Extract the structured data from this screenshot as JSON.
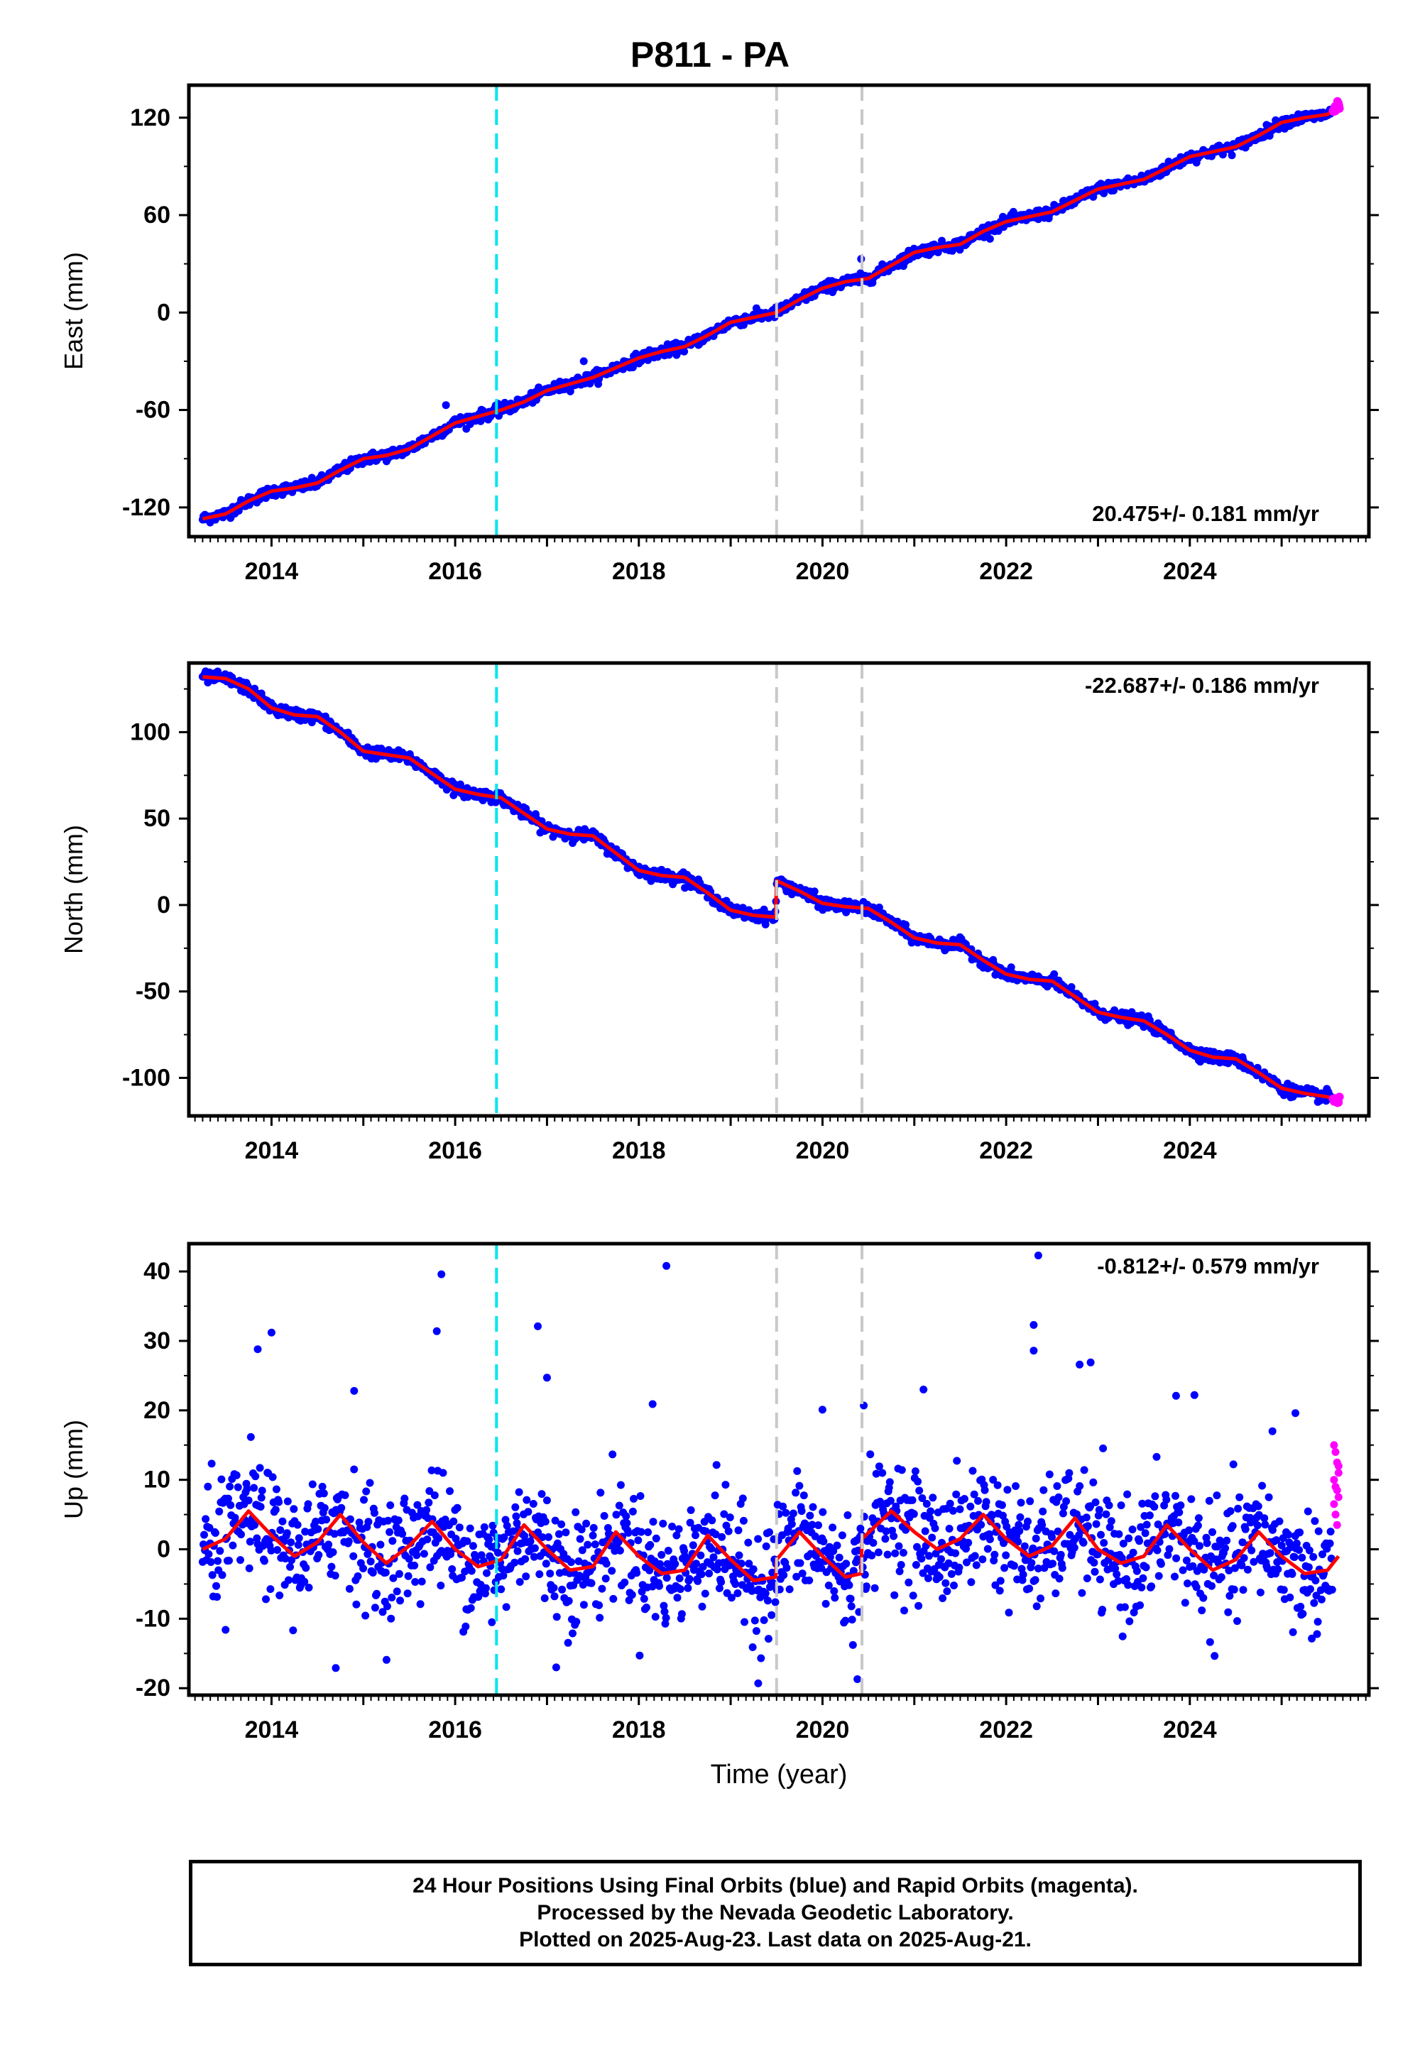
{
  "title": "P811 - PA",
  "footer": {
    "line1": "24 Hour Positions Using Final Orbits (blue) and Rapid Orbits (magenta).",
    "line2": "Processed by the Nevada Geodetic Laboratory.",
    "line3": "Plotted on 2025-Aug-23. Last data on 2025-Aug-21."
  },
  "colors": {
    "final_orbits": "#0000ff",
    "rapid_orbits": "#ff00ff",
    "model_fit": "#ff0000",
    "antenna_change_line": "#00e5ee",
    "equipment_change_line": "#c8c8c8"
  },
  "chart_data": [
    {
      "type": "scatter",
      "ylabel": "East (mm)",
      "xlabel": "",
      "xlim": [
        2013.1,
        2025.95
      ],
      "ylim": [
        -138,
        140
      ],
      "yticks": [
        -120,
        -60,
        0,
        60,
        120
      ],
      "xticks": [
        2014,
        2016,
        2018,
        2020,
        2022,
        2024
      ],
      "rate_label": "20.475+/- 0.181 mm/yr",
      "rate_position": "bottom-right",
      "vlines": [
        {
          "x": 2016.45,
          "color": "cyan"
        },
        {
          "x": 2019.5,
          "color": "gray"
        },
        {
          "x": 2020.43,
          "color": "gray"
        }
      ],
      "series": [
        {
          "role": "final",
          "x_range": [
            2013.25,
            2025.55
          ],
          "noise": 1.6,
          "outliers": [
            {
              "x": 2020.42,
              "y": 33
            },
            {
              "x": 2017.4,
              "y": -30
            },
            {
              "x": 2015.9,
              "y": -57
            }
          ]
        },
        {
          "role": "rapid",
          "x_range": [
            2025.56,
            2025.63
          ],
          "noise": 1.5
        },
        {
          "role": "model",
          "x": [
            2013.25,
            2013.5,
            2013.75,
            2014.0,
            2014.25,
            2014.5,
            2014.75,
            2015.0,
            2015.25,
            2015.5,
            2015.75,
            2016.0,
            2016.25,
            2016.5,
            2016.75,
            2017.0,
            2017.25,
            2017.5,
            2017.75,
            2018.0,
            2018.25,
            2018.5,
            2018.75,
            2019.0,
            2019.25,
            2019.5,
            2019.75,
            2020.0,
            2020.25,
            2020.5,
            2020.75,
            2021.0,
            2021.25,
            2021.5,
            2021.75,
            2022.0,
            2022.25,
            2022.5,
            2022.75,
            2023.0,
            2023.25,
            2023.5,
            2023.75,
            2024.0,
            2024.25,
            2024.5,
            2024.75,
            2025.0,
            2025.25,
            2025.5,
            2025.62
          ],
          "y": [
            -127,
            -124,
            -116,
            -110,
            -108,
            -105,
            -97,
            -90,
            -88,
            -84,
            -76,
            -68,
            -64,
            -60,
            -55,
            -48,
            -44,
            -40,
            -34,
            -28,
            -24,
            -21,
            -14,
            -6,
            -3,
            0,
            8,
            15,
            19,
            21,
            29,
            37,
            40,
            42,
            50,
            56,
            59,
            62,
            69,
            76,
            79,
            82,
            89,
            96,
            99,
            102,
            109,
            117,
            120,
            122,
            127
          ]
        }
      ]
    },
    {
      "type": "scatter",
      "ylabel": "North (mm)",
      "xlabel": "",
      "xlim": [
        2013.1,
        2025.95
      ],
      "ylim": [
        -122,
        140
      ],
      "yticks": [
        -100,
        -50,
        0,
        50,
        100
      ],
      "xticks": [
        2014,
        2016,
        2018,
        2020,
        2022,
        2024
      ],
      "rate_label": "-22.687+/- 0.186 mm/yr",
      "rate_position": "top-right",
      "vlines": [
        {
          "x": 2016.45,
          "color": "cyan"
        },
        {
          "x": 2019.5,
          "color": "gray"
        },
        {
          "x": 2020.43,
          "color": "gray"
        }
      ],
      "series": [
        {
          "role": "final",
          "x_range": [
            2013.25,
            2025.55
          ],
          "noise": 1.6,
          "outliers": []
        },
        {
          "role": "rapid",
          "x_range": [
            2025.56,
            2025.63
          ],
          "noise": 1.5
        },
        {
          "role": "model",
          "x": [
            2013.25,
            2013.5,
            2013.75,
            2014.0,
            2014.25,
            2014.5,
            2014.75,
            2015.0,
            2015.25,
            2015.5,
            2015.75,
            2016.0,
            2016.25,
            2016.5,
            2016.75,
            2017.0,
            2017.25,
            2017.5,
            2017.75,
            2018.0,
            2018.25,
            2018.5,
            2018.75,
            2019.0,
            2019.25,
            2019.49,
            2019.5,
            2019.75,
            2020.0,
            2020.25,
            2020.5,
            2020.75,
            2021.0,
            2021.25,
            2021.5,
            2021.75,
            2022.0,
            2022.25,
            2022.5,
            2022.75,
            2023.0,
            2023.25,
            2023.5,
            2023.75,
            2024.0,
            2024.25,
            2024.5,
            2024.75,
            2025.0,
            2025.25,
            2025.5,
            2025.62
          ],
          "y": [
            132,
            131,
            125,
            114,
            110,
            109,
            100,
            89,
            87,
            85,
            76,
            67,
            64,
            62,
            53,
            44,
            41,
            40,
            30,
            20,
            17,
            16,
            7,
            -3,
            -6,
            -7,
            14,
            8,
            1,
            -1,
            -2,
            -10,
            -19,
            -22,
            -23,
            -32,
            -40,
            -43,
            -44,
            -53,
            -62,
            -65,
            -67,
            -75,
            -84,
            -88,
            -89,
            -97,
            -106,
            -109,
            -111,
            -113
          ]
        }
      ]
    },
    {
      "type": "scatter",
      "ylabel": "Up (mm)",
      "xlabel": "Time (year)",
      "xlim": [
        2013.1,
        2025.95
      ],
      "ylim": [
        -21,
        44
      ],
      "yticks": [
        -20,
        -10,
        0,
        10,
        20,
        30,
        40
      ],
      "xticks": [
        2014,
        2016,
        2018,
        2020,
        2022,
        2024
      ],
      "rate_label": "-0.812+/- 0.579 mm/yr",
      "rate_position": "top-right",
      "vlines": [
        {
          "x": 2016.45,
          "color": "cyan"
        },
        {
          "x": 2019.5,
          "color": "gray"
        },
        {
          "x": 2020.43,
          "color": "gray"
        }
      ],
      "series": [
        {
          "role": "final",
          "x_range": [
            2013.25,
            2025.55
          ],
          "noise": 4.2,
          "outliers": [
            {
              "x": 2022.35,
              "y": 42.3
            },
            {
              "x": 2018.3,
              "y": 40.8
            },
            {
              "x": 2015.85,
              "y": 39.6
            },
            {
              "x": 2013.85,
              "y": 28.8
            },
            {
              "x": 2014.0,
              "y": 31.2
            },
            {
              "x": 2015.8,
              "y": 31.4
            },
            {
              "x": 2016.9,
              "y": 32.1
            },
            {
              "x": 2022.3,
              "y": 32.3
            },
            {
              "x": 2022.3,
              "y": 28.6
            },
            {
              "x": 2022.8,
              "y": 26.6
            },
            {
              "x": 2022.92,
              "y": 26.9
            },
            {
              "x": 2014.9,
              "y": 22.8
            },
            {
              "x": 2017.0,
              "y": 24.7
            },
            {
              "x": 2021.1,
              "y": 23.0
            },
            {
              "x": 2023.85,
              "y": 22.1
            },
            {
              "x": 2024.05,
              "y": 22.2
            },
            {
              "x": 2025.15,
              "y": 19.6
            },
            {
              "x": 2024.9,
              "y": 17.0
            },
            {
              "x": 2020.0,
              "y": 20.1
            },
            {
              "x": 2020.45,
              "y": 20.7
            },
            {
              "x": 2018.15,
              "y": 20.9
            },
            {
              "x": 2014.7,
              "y": -17.1
            },
            {
              "x": 2017.1,
              "y": -17.0
            },
            {
              "x": 2019.3,
              "y": -19.3
            },
            {
              "x": 2020.38,
              "y": -18.7
            },
            {
              "x": 2013.5,
              "y": -11.6
            },
            {
              "x": 2016.4,
              "y": -10.5
            }
          ]
        },
        {
          "role": "rapid",
          "x_range": [
            2025.57,
            2025.62
          ],
          "y_values": [
            15,
            14,
            12.5,
            11,
            10,
            9,
            8.5,
            7.5,
            6.5,
            5,
            3.5,
            12
          ]
        },
        {
          "role": "model",
          "x": [
            2013.25,
            2013.5,
            2013.75,
            2014.0,
            2014.25,
            2014.5,
            2014.75,
            2015.0,
            2015.25,
            2015.5,
            2015.75,
            2016.0,
            2016.25,
            2016.5,
            2016.75,
            2017.0,
            2017.25,
            2017.5,
            2017.75,
            2018.0,
            2018.25,
            2018.5,
            2018.75,
            2019.0,
            2019.25,
            2019.49,
            2019.5,
            2019.75,
            2020.0,
            2020.25,
            2020.42,
            2020.43,
            2020.75,
            2021.0,
            2021.25,
            2021.5,
            2021.75,
            2022.0,
            2022.25,
            2022.5,
            2022.75,
            2023.0,
            2023.25,
            2023.5,
            2023.75,
            2024.0,
            2024.25,
            2024.5,
            2024.75,
            2025.0,
            2025.25,
            2025.5,
            2025.62
          ],
          "y": [
            0.0,
            1.5,
            5.5,
            2.0,
            -1.0,
            1.0,
            5.0,
            1.0,
            -2.0,
            0.5,
            4.0,
            0.0,
            -2.5,
            -1.5,
            3.5,
            0.0,
            -3.0,
            -2.5,
            2.5,
            -1.0,
            -3.5,
            -3.0,
            2.0,
            -1.5,
            -4.5,
            -4.0,
            -1.5,
            2.5,
            -1.0,
            -4.0,
            -3.5,
            1.5,
            5.5,
            2.5,
            0.0,
            1.5,
            5.0,
            1.5,
            -1.0,
            0.5,
            4.5,
            0.0,
            -2.0,
            -1.0,
            3.5,
            0.0,
            -3.0,
            -1.5,
            2.5,
            -1.0,
            -3.5,
            -3.0,
            -1.0
          ]
        }
      ]
    }
  ]
}
